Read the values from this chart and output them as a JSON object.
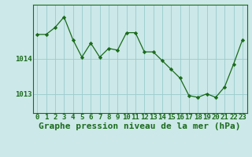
{
  "x": [
    0,
    1,
    2,
    3,
    4,
    5,
    6,
    7,
    8,
    9,
    10,
    11,
    12,
    13,
    14,
    15,
    16,
    17,
    18,
    19,
    20,
    21,
    22,
    23
  ],
  "y": [
    1014.7,
    1014.7,
    1014.9,
    1015.2,
    1014.55,
    1014.05,
    1014.45,
    1014.05,
    1014.3,
    1014.25,
    1014.75,
    1014.75,
    1014.2,
    1014.2,
    1013.95,
    1013.7,
    1013.45,
    1012.95,
    1012.9,
    1013.0,
    1012.9,
    1013.2,
    1013.85,
    1014.55
  ],
  "line_color": "#1a6b1a",
  "marker_color": "#1a6b1a",
  "bg_color": "#cce8e8",
  "grid_color": "#99cccc",
  "axis_color": "#1a6b1a",
  "xlabel": "Graphe pression niveau de la mer (hPa)",
  "yticks": [
    1013.0,
    1014.0
  ],
  "ylim": [
    1012.45,
    1015.55
  ],
  "xlim": [
    -0.5,
    23.5
  ],
  "label_fontsize": 8,
  "tick_fontsize": 6.5
}
